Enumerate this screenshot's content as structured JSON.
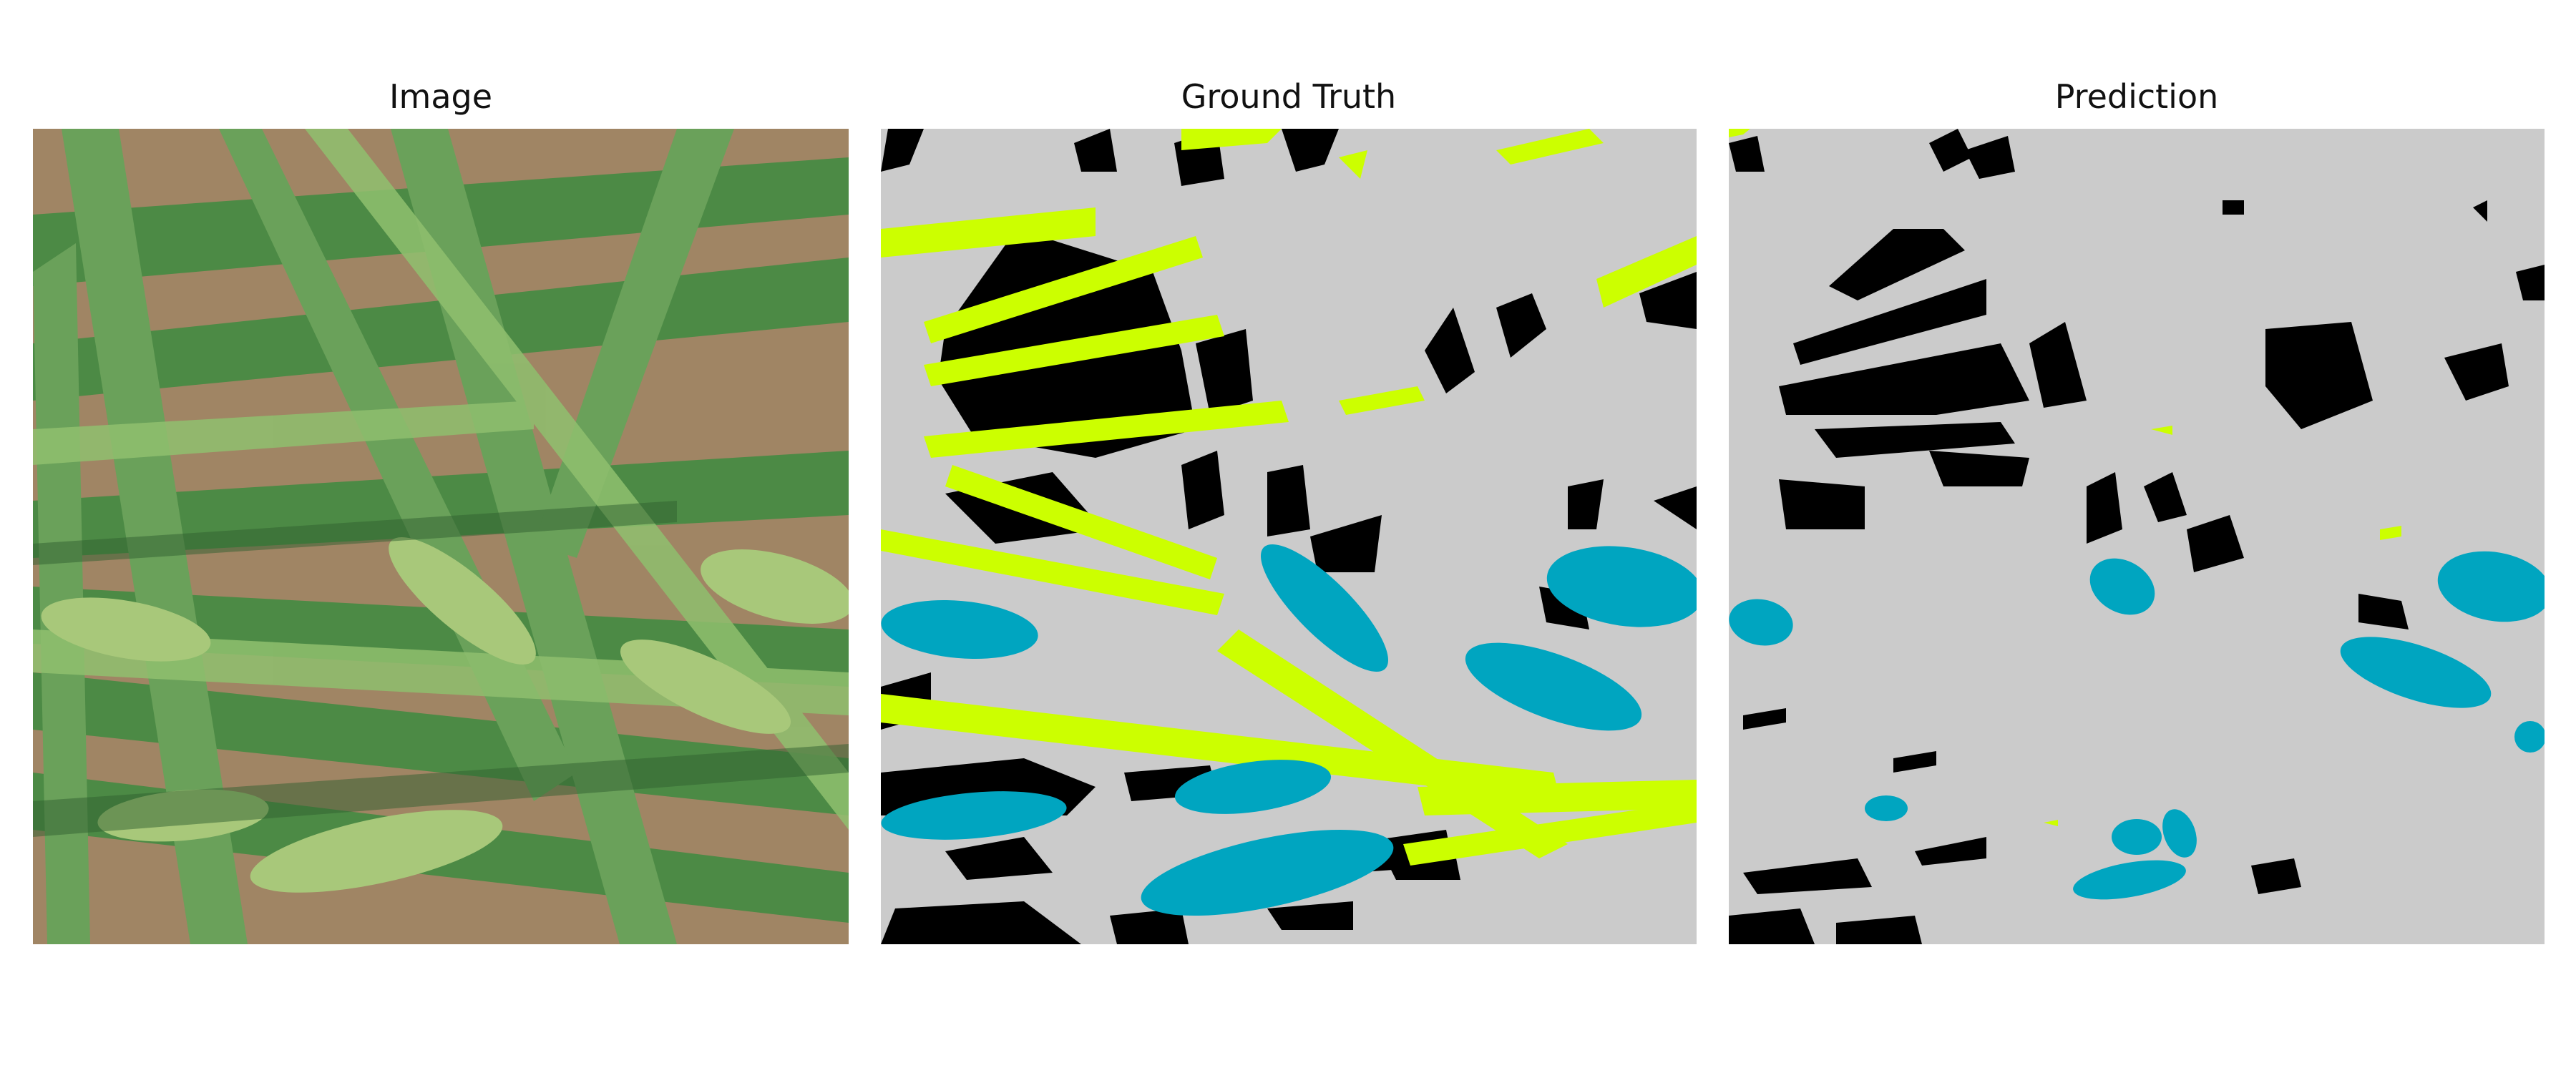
{
  "figure": {
    "panels": [
      {
        "title": "Image"
      },
      {
        "title": "Ground Truth"
      },
      {
        "title": "Prediction"
      }
    ]
  },
  "colors": {
    "background_class": "#cbcbcb",
    "soil_class": "#000000",
    "leaf_class": "#ccff00",
    "ear_class": "#00a5c0",
    "photo_soil": "#a08564",
    "photo_leaf_dark": "#3f7a3c",
    "photo_leaf_light": "#8fbf6e",
    "photo_ear": "#a8c87a"
  }
}
